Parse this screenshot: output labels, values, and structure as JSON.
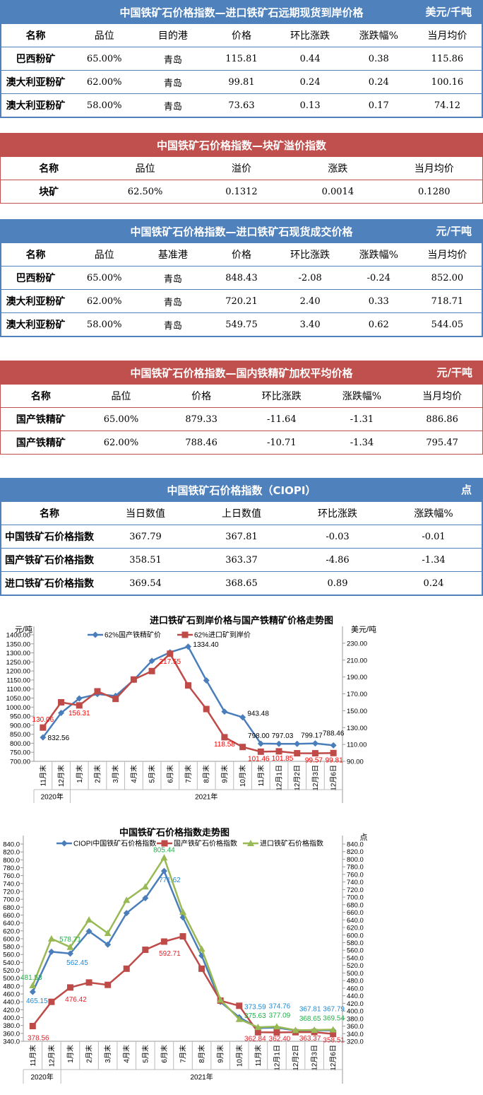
{
  "tables": [
    {
      "theme": "blue",
      "title": "中国铁矿石价格指数—进口铁矿石远期现货到岸价格",
      "unit": "美元/千吨",
      "columns": [
        "名称",
        "品位",
        "目的港",
        "价格",
        "环比涨跌",
        "涨跌幅%",
        "当月均价"
      ],
      "rows": [
        [
          "巴西粉矿",
          "65.00%",
          "青岛",
          "115.81",
          "0.44",
          "0.38",
          "115.86"
        ],
        [
          "澳大利亚粉矿",
          "62.00%",
          "青岛",
          "99.81",
          "0.24",
          "0.24",
          "100.16"
        ],
        [
          "澳大利亚粉矿",
          "58.00%",
          "青岛",
          "73.63",
          "0.13",
          "0.17",
          "74.12"
        ]
      ]
    },
    {
      "theme": "red",
      "title": "中国铁矿石价格指数—块矿溢价指数",
      "unit": "",
      "columns": [
        "名称",
        "品位",
        "溢价",
        "涨跌",
        "当月均价"
      ],
      "rows": [
        [
          "块矿",
          "62.50%",
          "0.1312",
          "0.0014",
          "0.1280"
        ]
      ]
    },
    {
      "theme": "blue",
      "title": "中国铁矿石价格指数—进口铁矿石现货成交价格",
      "unit": "元/干吨",
      "columns": [
        "名称",
        "品位",
        "基准港",
        "价格",
        "环比涨跌",
        "涨跌幅%",
        "当月均价"
      ],
      "rows": [
        [
          "巴西粉矿",
          "65.00%",
          "青岛",
          "848.43",
          "-2.08",
          "-0.24",
          "852.00"
        ],
        [
          "澳大利亚粉矿",
          "62.00%",
          "青岛",
          "720.21",
          "2.40",
          "0.33",
          "718.71"
        ],
        [
          "澳大利亚粉矿",
          "58.00%",
          "青岛",
          "549.75",
          "3.40",
          "0.62",
          "544.05"
        ]
      ]
    },
    {
      "theme": "red",
      "title": "中国铁矿石价格指数—国内铁精矿加权平均价格",
      "unit": "元/干吨",
      "columns": [
        "名称",
        "品位",
        "价格",
        "环比涨跌",
        "涨跌幅%",
        "当月均价"
      ],
      "rows": [
        [
          "国产铁精矿",
          "65.00%",
          "879.33",
          "-11.64",
          "-1.31",
          "886.86"
        ],
        [
          "国产铁精矿",
          "62.00%",
          "788.46",
          "-10.71",
          "-1.34",
          "795.47"
        ]
      ]
    },
    {
      "theme": "blue",
      "title": "中国铁矿石价格指数（CIOPI）",
      "unit": "点",
      "columns": [
        "名称",
        "当日数值",
        "上日数值",
        "环比涨跌",
        "涨跌幅%"
      ],
      "rows": [
        [
          "中国铁矿石价格指数",
          "367.79",
          "367.81",
          "-0.03",
          "-0.01"
        ],
        [
          "国产铁矿石价格指数",
          "358.51",
          "363.37",
          "-4.86",
          "-1.34"
        ],
        [
          "进口铁矿石价格指数",
          "369.54",
          "368.65",
          "0.89",
          "0.24"
        ]
      ]
    }
  ],
  "chart_data": [
    {
      "type": "line",
      "title": "进口铁矿石到岸价格与国产铁精矿价格走势图",
      "ylabel": "元/吨",
      "y2label": "美元/吨",
      "categories": [
        "11月末",
        "12月末",
        "1月末",
        "2月末",
        "3月末",
        "4月末",
        "5月末",
        "6月末",
        "7月末",
        "8月末",
        "9月末",
        "10月末",
        "11月末",
        "12月1日",
        "12月2日",
        "12月3日",
        "12月6日"
      ],
      "year_groups": [
        {
          "label": "2020年",
          "span": 2
        },
        {
          "label": "2021年",
          "span": 15
        }
      ],
      "ylim": [
        700,
        1400
      ],
      "ystep": 50,
      "y2lim": [
        90,
        240
      ],
      "y2ticks": [
        90,
        110,
        130,
        150,
        170,
        190,
        210,
        230
      ],
      "ydecimals": 2,
      "legend": "top",
      "series": [
        {
          "name": "62%国产铁精矿价",
          "axis": "left",
          "color": "#4a7ebb",
          "marker": "diamond",
          "label_color": "#000000",
          "values": [
            832.56,
            968,
            1048,
            1072,
            1062,
            1150,
            1256,
            1303,
            1334.4,
            1148,
            975,
            943.48,
            798.0,
            797.03,
            797,
            799.17,
            788.46
          ],
          "data_labels": [
            "832.56",
            null,
            null,
            null,
            null,
            null,
            null,
            null,
            "1334.40",
            null,
            null,
            "943.48",
            "798.00",
            "797.03",
            null,
            "799.17",
            "788.46"
          ]
        },
        {
          "name": "62%进口矿到岸价",
          "axis": "right",
          "color": "#be4b48",
          "marker": "square",
          "label_color": "#ff0000",
          "values": [
            130.06,
            160,
            156.31,
            173,
            164,
            187,
            197,
            217.55,
            180,
            152,
            118.58,
            107,
            101.46,
            101.85,
            99.6,
            99.57,
            99.81
          ],
          "data_labels": [
            "130.06",
            null,
            "156.31",
            null,
            null,
            null,
            null,
            "217.55",
            null,
            null,
            "118.58",
            null,
            "101.46",
            "101.85",
            null,
            "99.57",
            "99.81"
          ]
        }
      ]
    },
    {
      "type": "line",
      "title": "中国铁矿石价格指数走势图",
      "y2label": "点",
      "categories": [
        "11月末",
        "12月末",
        "1月末",
        "2月末",
        "3月末",
        "4月末",
        "5月末",
        "6月末",
        "7月末",
        "8月末",
        "9月末",
        "10月末",
        "11月末",
        "12月1日",
        "12月2日",
        "12月3日",
        "12月6日"
      ],
      "year_groups": [
        {
          "label": "2020年",
          "span": 2
        },
        {
          "label": "2021年",
          "span": 15
        }
      ],
      "ylim": [
        340,
        840
      ],
      "ystep": 20,
      "y2lim": [
        320,
        840
      ],
      "y2step": 20,
      "ydecimals": 1,
      "legend": "top",
      "series": [
        {
          "name": "CIOPI中国铁矿石价格指数",
          "axis": "left",
          "color": "#4a7ebb",
          "marker": "diamond",
          "label_color": "#1f8ad6",
          "values": [
            465.15,
            567,
            562.45,
            619,
            585,
            665,
            703,
            771.62,
            654,
            557,
            440,
            401,
            373.59,
            374.76,
            367,
            367.81,
            367.79
          ],
          "data_labels": [
            "465.15",
            null,
            "562.45",
            null,
            null,
            null,
            null,
            "771.62",
            null,
            null,
            null,
            null,
            "373.59",
            "374.76",
            null,
            "367.81",
            "367.79"
          ]
        },
        {
          "name": "国产铁矿石价格指数",
          "axis": "left",
          "color": "#be4b48",
          "marker": "square",
          "label_color": "#e0202a",
          "values": [
            378.56,
            440,
            476.42,
            489,
            483,
            524,
            572,
            592.71,
            606,
            524,
            443,
            430,
            362.84,
            362.4,
            363,
            363.37,
            358.51
          ],
          "data_labels": [
            "378.56",
            null,
            "476.42",
            null,
            null,
            null,
            null,
            "592.71",
            null,
            null,
            null,
            null,
            "362.84",
            "362.40",
            null,
            "363.37",
            "358.51"
          ]
        },
        {
          "name": "进口铁矿石价格指数",
          "axis": "left",
          "color": "#98b954",
          "marker": "triangle",
          "label_color": "#22b04a",
          "values": [
            481.53,
            600,
            578.71,
            648,
            614,
            698,
            732,
            805.44,
            668,
            574,
            445,
            396,
            375.63,
            377.09,
            368,
            368.65,
            369.54
          ],
          "data_labels": [
            "481.53",
            null,
            "578.71",
            null,
            null,
            null,
            null,
            "805.44",
            null,
            null,
            null,
            null,
            "375.63",
            "377.09",
            null,
            "368.65",
            "369.54"
          ]
        }
      ]
    }
  ]
}
